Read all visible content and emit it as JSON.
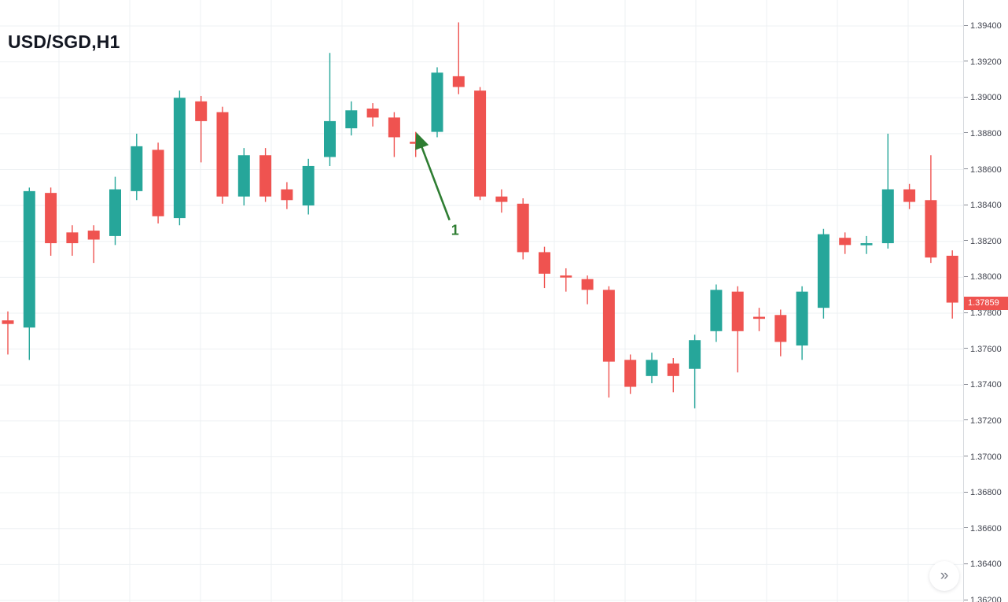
{
  "title": "USD/SGD,H1",
  "controls": {
    "expand_button": "»"
  },
  "annotation": {
    "label": "1",
    "color": "#2e7d32",
    "points_to_candle": 19
  },
  "price_axis": {
    "ticks": [
      "1.39400",
      "1.39200",
      "1.39000",
      "1.38800",
      "1.38600",
      "1.38400",
      "1.38200",
      "1.38000",
      "1.37800",
      "1.37600",
      "1.37400",
      "1.37200",
      "1.37000",
      "1.36800",
      "1.36600",
      "1.36400",
      "1.36200"
    ],
    "current_price": "1.37859",
    "current_price_value": 1.37859,
    "current_price_color": "#ef5350"
  },
  "chart_data": {
    "type": "candlestick",
    "symbol": "USD/SGD",
    "timeframe": "H1",
    "title": "USD/SGD,H1",
    "up_color": "#26a69a",
    "down_color": "#ef5350",
    "grid_color": "#edf0f3",
    "grid": true,
    "y_axis": {
      "min": 1.362,
      "max": 1.394,
      "tick_step": 0.002,
      "side": "right"
    },
    "candles": [
      [
        1.3776,
        1.3781,
        1.3757,
        1.3774
      ],
      [
        1.3772,
        1.385,
        1.3754,
        1.3848
      ],
      [
        1.3847,
        1.385,
        1.3812,
        1.3819
      ],
      [
        1.3825,
        1.3829,
        1.3812,
        1.3819
      ],
      [
        1.3826,
        1.3829,
        1.3808,
        1.3821
      ],
      [
        1.3823,
        1.3856,
        1.3818,
        1.3849
      ],
      [
        1.3848,
        1.388,
        1.3843,
        1.3873
      ],
      [
        1.3871,
        1.3875,
        1.383,
        1.3834
      ],
      [
        1.3833,
        1.3904,
        1.3829,
        1.39
      ],
      [
        1.3898,
        1.3901,
        1.3864,
        1.3887
      ],
      [
        1.3892,
        1.3895,
        1.3841,
        1.3845
      ],
      [
        1.3845,
        1.3872,
        1.384,
        1.3868
      ],
      [
        1.3868,
        1.3872,
        1.3842,
        1.3845
      ],
      [
        1.3849,
        1.3853,
        1.3838,
        1.3843
      ],
      [
        1.384,
        1.3866,
        1.3835,
        1.3862
      ],
      [
        1.3867,
        1.3925,
        1.3862,
        1.3887
      ],
      [
        1.3883,
        1.3898,
        1.3879,
        1.3893
      ],
      [
        1.3894,
        1.3897,
        1.3884,
        1.3889
      ],
      [
        1.3889,
        1.3892,
        1.3867,
        1.3878
      ],
      [
        1.38755,
        1.3881,
        1.3867,
        1.3875
      ],
      [
        1.3881,
        1.3917,
        1.3878,
        1.3914
      ],
      [
        1.3912,
        1.3942,
        1.3902,
        1.3906
      ],
      [
        1.3904,
        1.3906,
        1.3843,
        1.3845
      ],
      [
        1.3845,
        1.3849,
        1.3836,
        1.3842
      ],
      [
        1.3841,
        1.3844,
        1.381,
        1.3814
      ],
      [
        1.3814,
        1.3817,
        1.3794,
        1.3802
      ],
      [
        1.3801,
        1.3805,
        1.3792,
        1.38
      ],
      [
        1.3799,
        1.3801,
        1.3785,
        1.3793
      ],
      [
        1.3793,
        1.3795,
        1.3733,
        1.3753
      ],
      [
        1.3754,
        1.3757,
        1.3735,
        1.3739
      ],
      [
        1.3745,
        1.3758,
        1.3741,
        1.3754
      ],
      [
        1.3752,
        1.3755,
        1.3736,
        1.3745
      ],
      [
        1.3749,
        1.3768,
        1.3727,
        1.3765
      ],
      [
        1.377,
        1.3796,
        1.3764,
        1.3793
      ],
      [
        1.3792,
        1.3795,
        1.3747,
        1.377
      ],
      [
        1.3778,
        1.3783,
        1.377,
        1.3777
      ],
      [
        1.3779,
        1.3782,
        1.3756,
        1.3764
      ],
      [
        1.3762,
        1.3795,
        1.3754,
        1.3792
      ],
      [
        1.3783,
        1.3827,
        1.3777,
        1.3824
      ],
      [
        1.3822,
        1.3825,
        1.3813,
        1.3818
      ],
      [
        1.3818,
        1.3823,
        1.3813,
        1.3819
      ],
      [
        1.3819,
        1.388,
        1.3816,
        1.3849
      ],
      [
        1.3849,
        1.3852,
        1.3838,
        1.3842
      ],
      [
        1.3843,
        1.3868,
        1.3808,
        1.3811
      ],
      [
        1.3812,
        1.3815,
        1.3777,
        1.37859
      ]
    ]
  }
}
